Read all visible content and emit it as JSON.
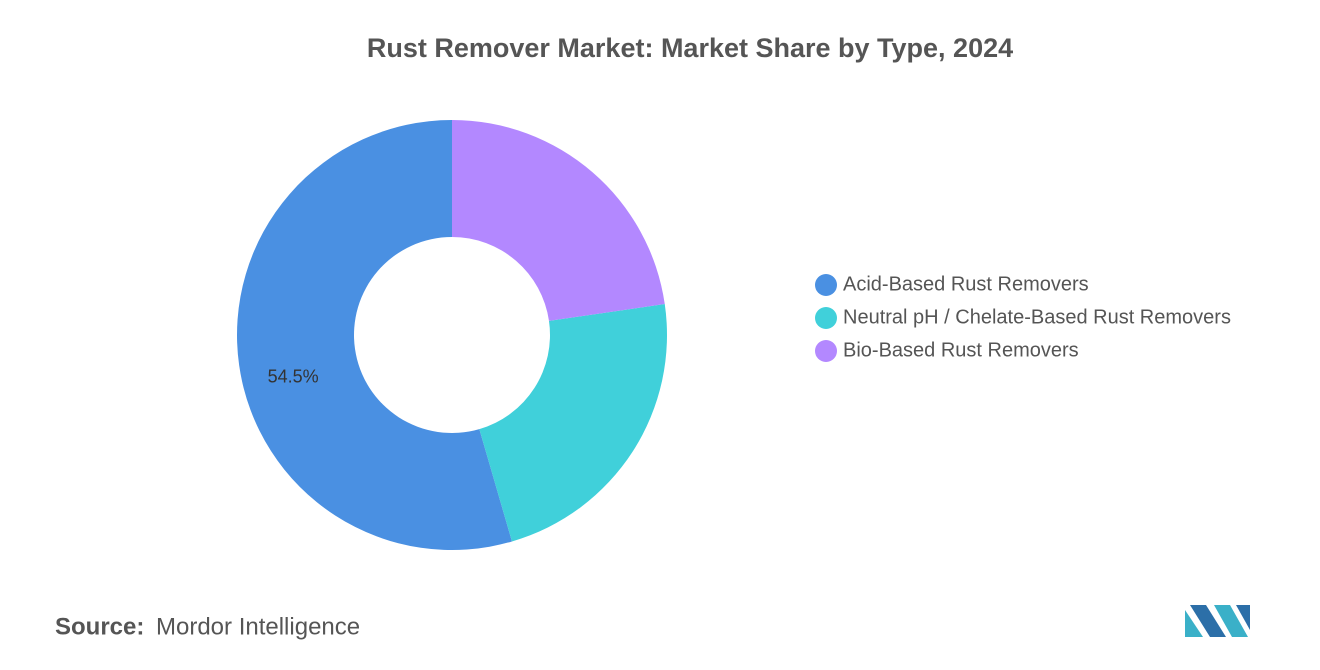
{
  "chart_data": {
    "type": "donut",
    "title": "Rust Remover Market: Market Share by Type, 2024",
    "categories": [
      "Acid-Based Rust Removers",
      "Neutral pH / Chelate-Based Rust Removers",
      "Bio-Based Rust Removers"
    ],
    "values": [
      54.5,
      22.8,
      22.7
    ],
    "value_labels": [
      "54.5%",
      null,
      null
    ],
    "colors": [
      "#4a90e2",
      "#40d0da",
      "#b388ff"
    ],
    "legend": "right"
  },
  "source": {
    "label": "Source:",
    "text": "Mordor Intelligence"
  }
}
